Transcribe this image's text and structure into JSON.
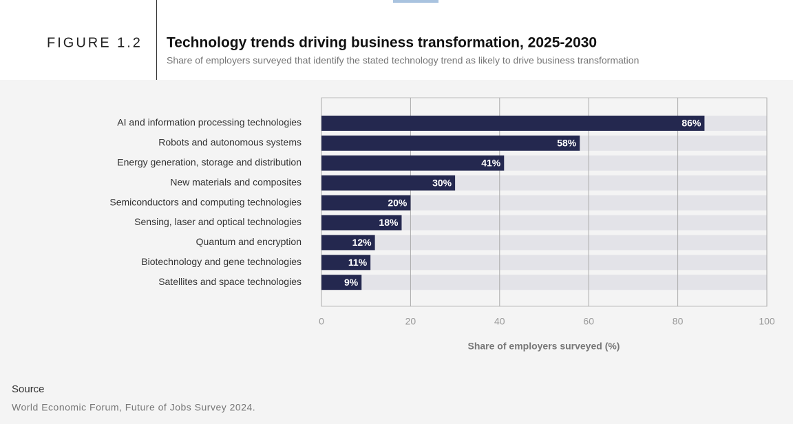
{
  "figure_label": "FIGURE 1.2",
  "chart_data": {
    "type": "bar",
    "orientation": "horizontal",
    "title": "Technology trends driving business transformation, 2025-2030",
    "subtitle": "Share of employers surveyed that identify the stated technology trend as likely to drive business transformation",
    "categories": [
      "AI and information processing technologies",
      "Robots and autonomous systems",
      "Energy generation, storage and distribution",
      "New materials and composites",
      "Semiconductors and computing technologies",
      "Sensing, laser and optical technologies",
      "Quantum and encryption",
      "Biotechnology and gene technologies",
      "Satellites and space technologies"
    ],
    "values": [
      86,
      58,
      41,
      30,
      20,
      18,
      12,
      11,
      9
    ],
    "value_labels": [
      "86%",
      "58%",
      "41%",
      "30%",
      "20%",
      "18%",
      "12%",
      "11%",
      "9%"
    ],
    "color": "#24284f",
    "xlim": [
      0,
      100
    ],
    "xticks": [
      0,
      20,
      40,
      60,
      80,
      100
    ],
    "xlabel": "Share of employers surveyed (%)",
    "grid": true
  },
  "source": {
    "heading": "Source",
    "text": "World Economic Forum, Future of Jobs Survey 2024."
  }
}
